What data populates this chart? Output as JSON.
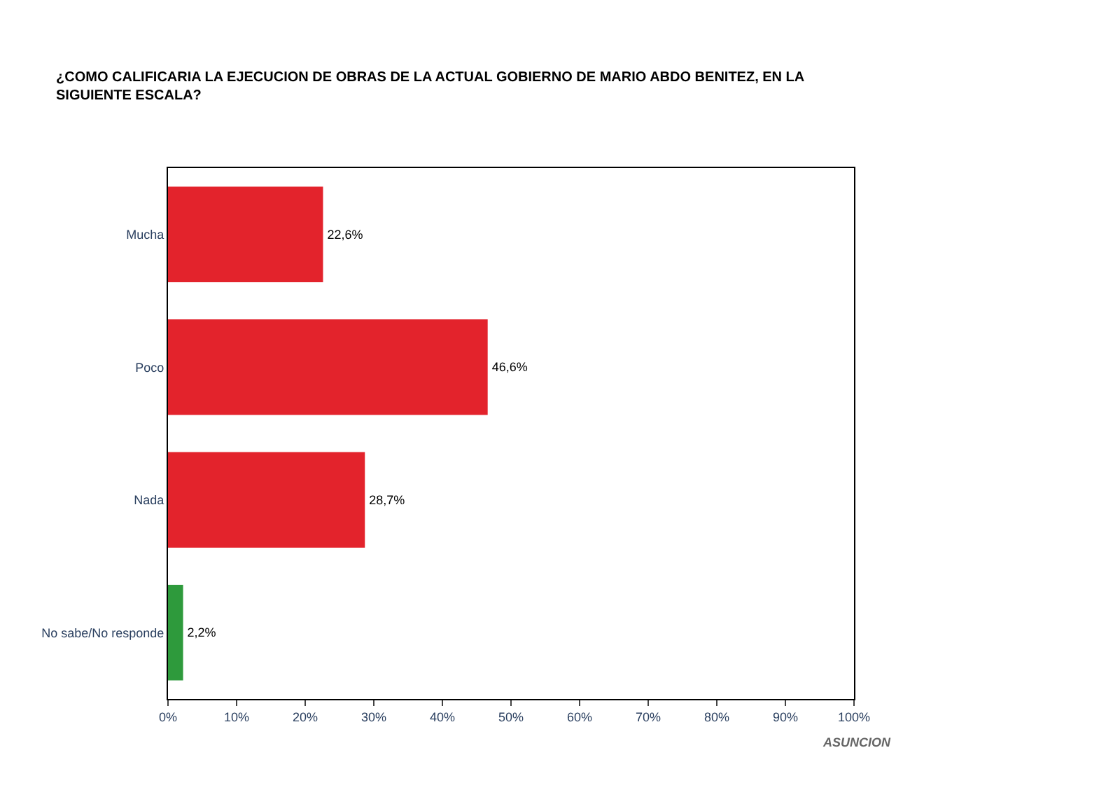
{
  "chart_data": {
    "type": "bar",
    "orientation": "horizontal",
    "title": "¿COMO CALIFICARIA LA EJECUCION DE OBRAS DE LA ACTUAL GOBIERNO DE MARIO ABDO BENITEZ, EN LA SIGUIENTE ESCALA?",
    "categories": [
      "Mucha",
      "Poco",
      "Nada",
      "No sabe/No responde"
    ],
    "values": [
      22.6,
      46.6,
      28.7,
      2.2
    ],
    "value_labels": [
      "22,6%",
      "46,6%",
      "28,7%",
      "2,2%"
    ],
    "colors": [
      "#e3232c",
      "#e3232c",
      "#e3232c",
      "#2e9a3c"
    ],
    "xlim": [
      0,
      100
    ],
    "xticks": [
      {
        "value": 0,
        "label": "0%"
      },
      {
        "value": 10,
        "label": "10%"
      },
      {
        "value": 20,
        "label": "20%"
      },
      {
        "value": 30,
        "label": "30%"
      },
      {
        "value": 40,
        "label": "40%"
      },
      {
        "value": 50,
        "label": "50%"
      },
      {
        "value": 60,
        "label": "60%"
      },
      {
        "value": 70,
        "label": "70%"
      },
      {
        "value": 80,
        "label": "80%"
      },
      {
        "value": 90,
        "label": "90%"
      },
      {
        "value": 100,
        "label": "100%"
      }
    ],
    "legend": false,
    "annotations": [
      "ASUNCION"
    ]
  }
}
